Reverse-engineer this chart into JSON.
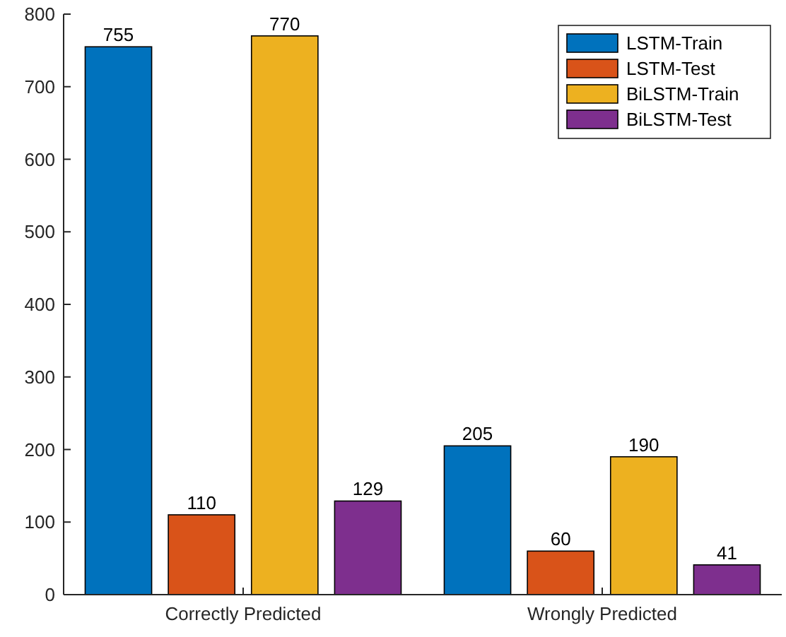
{
  "chart_data": {
    "type": "bar",
    "categories": [
      "Correctly Predicted",
      "Wrongly Predicted"
    ],
    "series": [
      {
        "name": "LSTM-Train",
        "color": "#0072bd",
        "values": [
          755,
          205
        ]
      },
      {
        "name": "LSTM-Test",
        "color": "#d95319",
        "values": [
          110,
          60
        ]
      },
      {
        "name": "BiLSTM-Train",
        "color": "#edb120",
        "values": [
          770,
          190
        ]
      },
      {
        "name": "BiLSTM-Test",
        "color": "#7e2f8e",
        "values": [
          129,
          41
        ]
      }
    ],
    "ylim": [
      0,
      800
    ],
    "yticks": [
      0,
      100,
      200,
      300,
      400,
      500,
      600,
      700,
      800
    ],
    "data_labels": true,
    "legend": "top right",
    "grid": false
  }
}
